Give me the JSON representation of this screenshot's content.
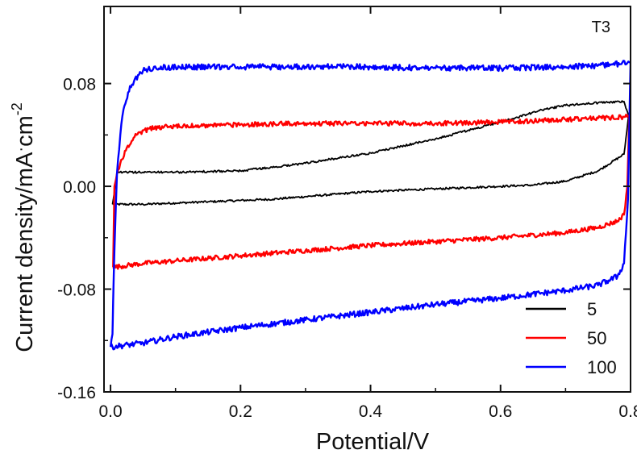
{
  "chart_data": {
    "type": "line",
    "panel_label": "T3",
    "xlabel": "Potential/V",
    "ylabel_main": "Current density/mA",
    "ylabel_dot": "·",
    "ylabel_unit": "cm",
    "ylabel_sup": "-2",
    "xlim": [
      -0.01,
      0.8
    ],
    "ylim": [
      -0.16,
      0.14
    ],
    "xticks": [
      {
        "value": 0.0,
        "label": "0.0"
      },
      {
        "value": 0.2,
        "label": "0.2"
      },
      {
        "value": 0.4,
        "label": "0.4"
      },
      {
        "value": 0.6,
        "label": "0.6"
      },
      {
        "value": 0.8,
        "label": "0.8"
      }
    ],
    "yticks": [
      {
        "value": 0.08,
        "label": "0.08"
      },
      {
        "value": 0.0,
        "label": "0.00"
      },
      {
        "value": -0.08,
        "label": "-0.08"
      },
      {
        "value": -0.16,
        "label": "-0.16"
      }
    ],
    "legend_position": "bottom-right",
    "series": [
      {
        "name": "5",
        "color": "#000000",
        "noise": 0.0008,
        "x": [
          0.003,
          0.05,
          0.1,
          0.15,
          0.2,
          0.25,
          0.3,
          0.35,
          0.4,
          0.45,
          0.5,
          0.55,
          0.6,
          0.65,
          0.7,
          0.75,
          0.79,
          0.797,
          0.79,
          0.75,
          0.7,
          0.66,
          0.655,
          0.6,
          0.5,
          0.4,
          0.3,
          0.2,
          0.1,
          0.05,
          0.013,
          0.01,
          0.003
        ],
        "y": [
          -0.014,
          -0.014,
          -0.013,
          -0.012,
          -0.011,
          -0.01,
          -0.008,
          -0.006,
          -0.004,
          -0.003,
          -0.002,
          -0.001,
          0.0,
          0.001,
          0.004,
          0.012,
          0.025,
          0.055,
          0.066,
          0.065,
          0.063,
          0.059,
          0.058,
          0.05,
          0.037,
          0.026,
          0.018,
          0.012,
          0.011,
          0.011,
          0.011,
          0.01,
          -0.014
        ]
      },
      {
        "name": "50",
        "color": "#ff0000",
        "noise": 0.0018,
        "x": [
          0.004,
          0.05,
          0.1,
          0.2,
          0.3,
          0.4,
          0.5,
          0.6,
          0.7,
          0.75,
          0.78,
          0.79,
          0.795,
          0.798,
          0.79,
          0.75,
          0.7,
          0.6,
          0.5,
          0.4,
          0.3,
          0.2,
          0.1,
          0.06,
          0.04,
          0.025,
          0.015,
          0.01,
          0.006,
          0.004
        ],
        "y": [
          -0.063,
          -0.06,
          -0.058,
          -0.054,
          -0.05,
          -0.046,
          -0.043,
          -0.04,
          -0.036,
          -0.032,
          -0.027,
          -0.022,
          0.0,
          0.055,
          0.054,
          0.053,
          0.052,
          0.05,
          0.049,
          0.049,
          0.049,
          0.048,
          0.047,
          0.045,
          0.04,
          0.03,
          0.018,
          0.01,
          0.0,
          -0.063
        ]
      },
      {
        "name": "100",
        "color": "#0000ff",
        "noise": 0.0022,
        "x": [
          0.0,
          0.05,
          0.1,
          0.2,
          0.3,
          0.4,
          0.5,
          0.6,
          0.7,
          0.75,
          0.78,
          0.79,
          0.796,
          0.8,
          0.795,
          0.75,
          0.7,
          0.6,
          0.5,
          0.4,
          0.3,
          0.2,
          0.1,
          0.07,
          0.05,
          0.03,
          0.02,
          0.015,
          0.01,
          0.006,
          0.004,
          0.003,
          0.0
        ],
        "y": [
          -0.125,
          -0.122,
          -0.117,
          -0.11,
          -0.104,
          -0.098,
          -0.092,
          -0.087,
          -0.081,
          -0.077,
          -0.07,
          -0.06,
          -0.01,
          0.097,
          0.096,
          0.094,
          0.093,
          0.092,
          0.092,
          0.093,
          0.093,
          0.093,
          0.093,
          0.092,
          0.09,
          0.078,
          0.06,
          0.04,
          0.01,
          -0.05,
          -0.09,
          -0.115,
          -0.125
        ]
      }
    ]
  }
}
